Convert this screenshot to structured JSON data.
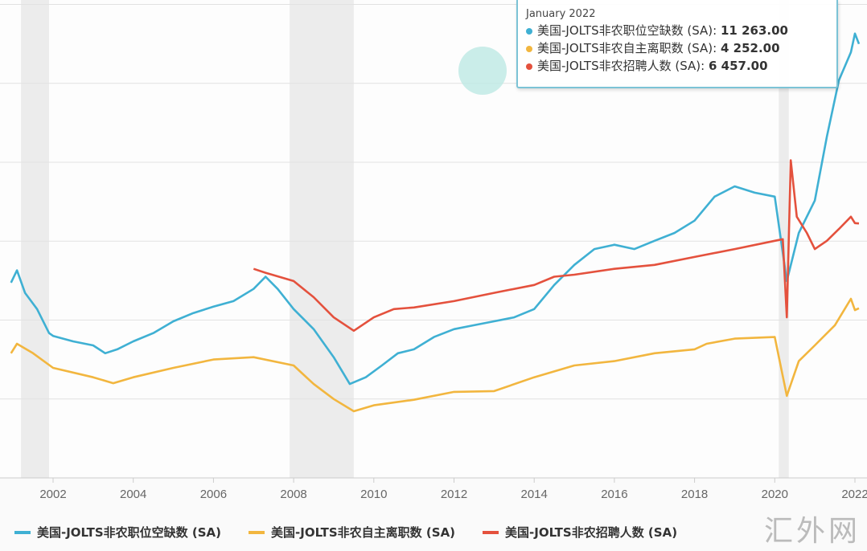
{
  "colors": {
    "openings": "#3fb0d3",
    "quits": "#f2b63f",
    "hires": "#e4513d"
  },
  "tooltip": {
    "date": "January 2022",
    "rows": [
      {
        "label": "美国-JOLTS非农职位空缺数 (SA):",
        "value": "11 263.00"
      },
      {
        "label": "美国-JOLTS非农自主离职数 (SA):",
        "value": "4 252.00"
      },
      {
        "label": "美国-JOLTS非农招聘人数 (SA):",
        "value": "6 457.00"
      }
    ]
  },
  "watermark": "汇外网",
  "chart_data": {
    "type": "line",
    "xlim": [
      2000.9,
      2022.3
    ],
    "ylim": [
      0,
      12000
    ],
    "grid": true,
    "xticks": [
      "2002",
      "2004",
      "2006",
      "2008",
      "2010",
      "2012",
      "2014",
      "2016",
      "2018",
      "2020",
      "2022"
    ],
    "recessions": [
      [
        2001.2,
        2001.9
      ],
      [
        2007.9,
        2009.5
      ],
      [
        2020.1,
        2020.35
      ]
    ],
    "legend_position": "bottom",
    "series": [
      {
        "name": "美国-JOLTS非农职位空缺数 (SA)",
        "key": "openings",
        "points": [
          [
            2000.95,
            4950
          ],
          [
            2001.1,
            5260
          ],
          [
            2001.3,
            4690
          ],
          [
            2001.6,
            4280
          ],
          [
            2001.9,
            3670
          ],
          [
            2002.0,
            3600
          ],
          [
            2002.5,
            3460
          ],
          [
            2003.0,
            3360
          ],
          [
            2003.3,
            3160
          ],
          [
            2003.6,
            3260
          ],
          [
            2004.0,
            3460
          ],
          [
            2004.5,
            3670
          ],
          [
            2005.0,
            3970
          ],
          [
            2005.5,
            4180
          ],
          [
            2006.0,
            4340
          ],
          [
            2006.5,
            4480
          ],
          [
            2007.0,
            4790
          ],
          [
            2007.3,
            5100
          ],
          [
            2007.6,
            4790
          ],
          [
            2008.0,
            4280
          ],
          [
            2008.5,
            3770
          ],
          [
            2009.0,
            3060
          ],
          [
            2009.4,
            2380
          ],
          [
            2009.8,
            2550
          ],
          [
            2010.2,
            2850
          ],
          [
            2010.6,
            3160
          ],
          [
            2011.0,
            3260
          ],
          [
            2011.5,
            3570
          ],
          [
            2012.0,
            3770
          ],
          [
            2012.5,
            3870
          ],
          [
            2013.0,
            3970
          ],
          [
            2013.5,
            4070
          ],
          [
            2014.0,
            4280
          ],
          [
            2014.5,
            4890
          ],
          [
            2015.0,
            5400
          ],
          [
            2015.5,
            5800
          ],
          [
            2016.0,
            5910
          ],
          [
            2016.5,
            5800
          ],
          [
            2017.0,
            6010
          ],
          [
            2017.5,
            6210
          ],
          [
            2018.0,
            6520
          ],
          [
            2018.5,
            7130
          ],
          [
            2019.0,
            7390
          ],
          [
            2019.5,
            7230
          ],
          [
            2020.0,
            7130
          ],
          [
            2020.3,
            4990
          ],
          [
            2020.6,
            6210
          ],
          [
            2021.0,
            7030
          ],
          [
            2021.3,
            8650
          ],
          [
            2021.6,
            10080
          ],
          [
            2021.9,
            10790
          ],
          [
            2022.0,
            11263
          ],
          [
            2022.1,
            11000
          ]
        ]
      },
      {
        "name": "美国-JOLTS非农自主离职数 (SA)",
        "key": "quits",
        "points": [
          [
            2000.95,
            3160
          ],
          [
            2001.1,
            3400
          ],
          [
            2001.5,
            3160
          ],
          [
            2002.0,
            2790
          ],
          [
            2003.0,
            2550
          ],
          [
            2003.5,
            2400
          ],
          [
            2004.0,
            2550
          ],
          [
            2005.0,
            2790
          ],
          [
            2006.0,
            3000
          ],
          [
            2007.0,
            3060
          ],
          [
            2008.0,
            2850
          ],
          [
            2008.5,
            2380
          ],
          [
            2009.0,
            2000
          ],
          [
            2009.5,
            1690
          ],
          [
            2010.0,
            1840
          ],
          [
            2011.0,
            1980
          ],
          [
            2012.0,
            2180
          ],
          [
            2013.0,
            2200
          ],
          [
            2014.0,
            2550
          ],
          [
            2015.0,
            2850
          ],
          [
            2016.0,
            2960
          ],
          [
            2017.0,
            3160
          ],
          [
            2018.0,
            3260
          ],
          [
            2018.3,
            3400
          ],
          [
            2019.0,
            3530
          ],
          [
            2020.0,
            3570
          ],
          [
            2020.3,
            2080
          ],
          [
            2020.6,
            2960
          ],
          [
            2021.0,
            3360
          ],
          [
            2021.5,
            3870
          ],
          [
            2021.9,
            4540
          ],
          [
            2022.0,
            4252
          ],
          [
            2022.1,
            4300
          ]
        ]
      },
      {
        "name": "美国-JOLTS非农招聘人数 (SA)",
        "key": "hires",
        "points": [
          [
            2007.0,
            5300
          ],
          [
            2007.3,
            5200
          ],
          [
            2008.0,
            4990
          ],
          [
            2008.5,
            4580
          ],
          [
            2009.0,
            4070
          ],
          [
            2009.5,
            3730
          ],
          [
            2010.0,
            4070
          ],
          [
            2010.5,
            4280
          ],
          [
            2011.0,
            4320
          ],
          [
            2012.0,
            4480
          ],
          [
            2013.0,
            4690
          ],
          [
            2014.0,
            4890
          ],
          [
            2014.5,
            5100
          ],
          [
            2015.0,
            5150
          ],
          [
            2016.0,
            5300
          ],
          [
            2017.0,
            5400
          ],
          [
            2018.0,
            5600
          ],
          [
            2019.0,
            5800
          ],
          [
            2020.0,
            6010
          ],
          [
            2020.2,
            6050
          ],
          [
            2020.3,
            4070
          ],
          [
            2020.4,
            8050
          ],
          [
            2020.55,
            6620
          ],
          [
            2020.8,
            6210
          ],
          [
            2021.0,
            5800
          ],
          [
            2021.3,
            6010
          ],
          [
            2021.6,
            6310
          ],
          [
            2021.9,
            6620
          ],
          [
            2022.0,
            6457
          ],
          [
            2022.1,
            6450
          ]
        ]
      }
    ]
  }
}
